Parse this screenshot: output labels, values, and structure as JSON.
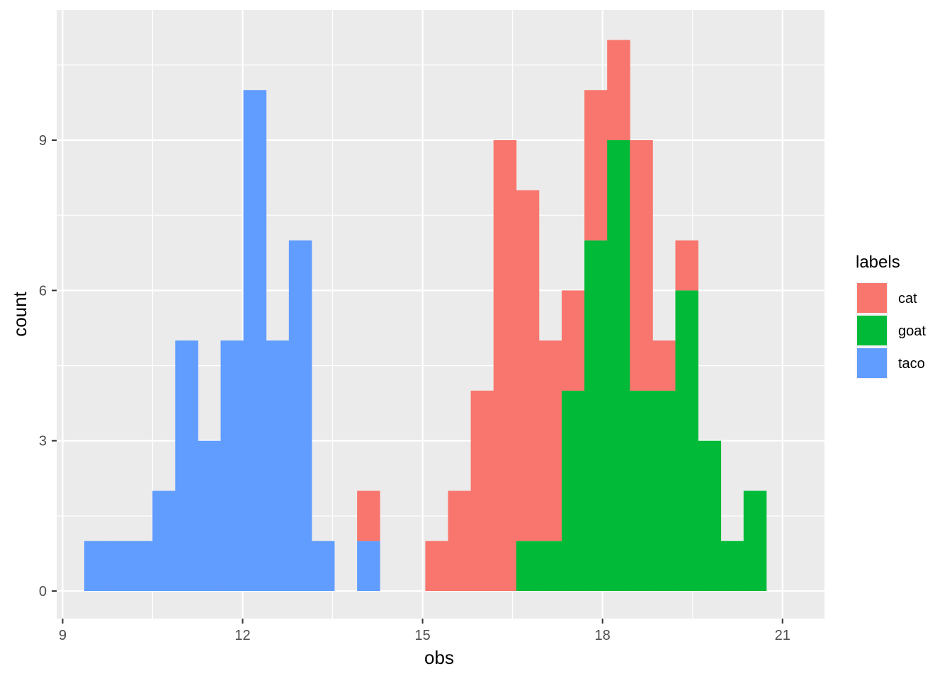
{
  "chart_data": {
    "type": "bar",
    "subtype": "stacked-histogram",
    "title": "",
    "xlabel": "obs",
    "ylabel": "count",
    "xlim": [
      8.9,
      21.7
    ],
    "ylim": [
      -0.55,
      11.6
    ],
    "xticks": [
      9,
      12,
      15,
      18,
      21
    ],
    "yticks": [
      0,
      3,
      6,
      9
    ],
    "grid": true,
    "background": "#EBEBEB",
    "legend": {
      "title": "labels",
      "position": "right",
      "entries": [
        "cat",
        "goat",
        "taco"
      ]
    },
    "bin_width": 0.379,
    "bin_starts": [
      9.36,
      9.739,
      10.118,
      10.497,
      10.876,
      11.255,
      11.634,
      12.013,
      12.392,
      12.771,
      13.15,
      13.529,
      13.908,
      14.287,
      14.666,
      15.045,
      15.424,
      15.803,
      16.182,
      16.561,
      16.94,
      17.319,
      17.698,
      18.077,
      18.456,
      18.835,
      19.214,
      19.593,
      19.972,
      20.351
    ],
    "series": [
      {
        "name": "taco",
        "color": "#619CFF",
        "values": [
          1,
          1,
          1,
          2,
          5,
          3,
          5,
          10,
          5,
          7,
          1,
          0,
          1,
          0,
          0,
          0,
          0,
          0,
          0,
          0,
          0,
          0,
          0,
          0,
          0,
          0,
          0,
          0,
          0,
          0
        ]
      },
      {
        "name": "goat",
        "color": "#00BA38",
        "values": [
          0,
          0,
          0,
          0,
          0,
          0,
          0,
          0,
          0,
          0,
          0,
          0,
          0,
          0,
          0,
          0,
          0,
          0,
          0,
          1,
          1,
          4,
          7,
          9,
          4,
          4,
          6,
          3,
          1,
          2
        ]
      },
      {
        "name": "cat",
        "color": "#F8766D",
        "values": [
          0,
          0,
          0,
          0,
          0,
          0,
          0,
          0,
          0,
          0,
          0,
          0,
          1,
          0,
          0,
          1,
          2,
          4,
          9,
          7,
          4,
          2,
          3,
          2,
          5,
          1,
          1,
          0,
          0,
          0
        ]
      }
    ]
  }
}
